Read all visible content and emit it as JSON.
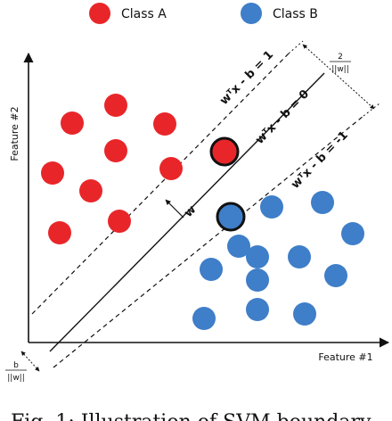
{
  "legend": {
    "class_a": "Class A",
    "class_b": "Class B"
  },
  "axes": {
    "y_title": "Feature #2",
    "x_title": "Feature #1"
  },
  "hyperplanes": {
    "upper": "wᵀx - b = 1",
    "middle": "wᵀx - b = 0",
    "lower": "wᵀx - b = -1",
    "normal": "w"
  },
  "margins": {
    "width_num": "2",
    "width_den": "||w||",
    "offset_num": "b",
    "offset_den": "||w||"
  },
  "caption": "Fig. 1: Illustration of SVM boundary",
  "colors": {
    "class_a": "#e8262a",
    "class_b": "#3f7ec8",
    "line": "#111111"
  }
}
